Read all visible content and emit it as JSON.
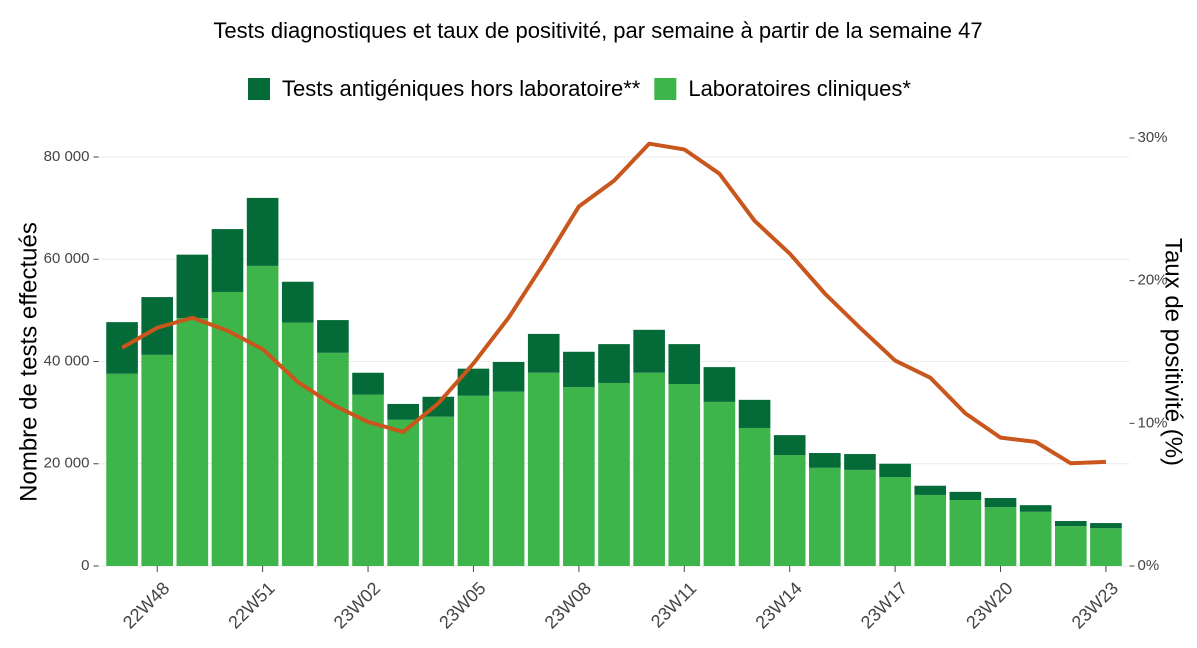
{
  "chart_data": {
    "type": "bar",
    "title": "Tests diagnostiques et taux de positivité, par semaine à partir de la semaine 47",
    "ylabel": "Nombre de tests effectués",
    "y2label": "Taux de positivité (%)",
    "categories": [
      null,
      "22W48",
      null,
      null,
      "22W51",
      null,
      null,
      "23W02",
      null,
      null,
      "23W05",
      null,
      null,
      "23W08",
      null,
      null,
      "23W11",
      null,
      null,
      "23W14",
      null,
      null,
      "23W17",
      null,
      null,
      "23W20",
      null,
      null,
      "23W23"
    ],
    "series": [
      {
        "name": "Tests antigéniques hors laboratoire**",
        "color": "#046a38",
        "type": "bar",
        "values": [
          10.1,
          11.3,
          12.4,
          12.3,
          13.3,
          8.0,
          6.4,
          4.3,
          3.1,
          3.9,
          5.3,
          5.8,
          7.6,
          6.9,
          7.6,
          8.4,
          7.8,
          6.8,
          5.5,
          3.9,
          2.9,
          3.1,
          2.6,
          1.8,
          1.6,
          1.8,
          1.3,
          1.0,
          1.0
        ]
      },
      {
        "name": "Laboratoires cliniques*",
        "color": "#3db54a",
        "type": "bar",
        "values": [
          37.6,
          41.3,
          48.5,
          53.6,
          58.7,
          47.6,
          41.7,
          33.5,
          28.6,
          29.2,
          33.3,
          34.1,
          37.8,
          35.0,
          35.8,
          37.8,
          35.6,
          32.1,
          27.0,
          21.7,
          19.2,
          18.8,
          17.4,
          13.9,
          12.9,
          11.5,
          10.6,
          7.8,
          7.4
        ]
      },
      {
        "color": "#c9561c",
        "type": "line",
        "axis": "y2",
        "values": [
          15.3,
          16.7,
          17.4,
          16.5,
          15.2,
          12.9,
          11.3,
          10.1,
          9.4,
          11.4,
          14.2,
          17.4,
          21.2,
          25.2,
          27.0,
          29.6,
          29.2,
          27.5,
          24.2,
          21.9,
          19.1,
          16.7,
          14.4,
          13.2,
          10.7,
          9.0,
          8.7,
          7.2,
          7.3
        ]
      }
    ],
    "ylim": [
      0,
      80.0
    ],
    "yticks": [
      {
        "value": 0,
        "label": "0"
      },
      {
        "value": 20,
        "label": "20 000"
      },
      {
        "value": 40,
        "label": "40 000"
      },
      {
        "value": 60,
        "label": "60 000"
      },
      {
        "value": 80,
        "label": "80 000"
      }
    ],
    "y2lim": [
      0,
      30
    ],
    "y2ticks": [
      {
        "value": 0,
        "label": "0%"
      },
      {
        "value": 10,
        "label": "10%"
      },
      {
        "value": 20,
        "label": "20%"
      },
      {
        "value": 30,
        "label": "30%"
      }
    ],
    "grid": true,
    "legend": "top"
  }
}
